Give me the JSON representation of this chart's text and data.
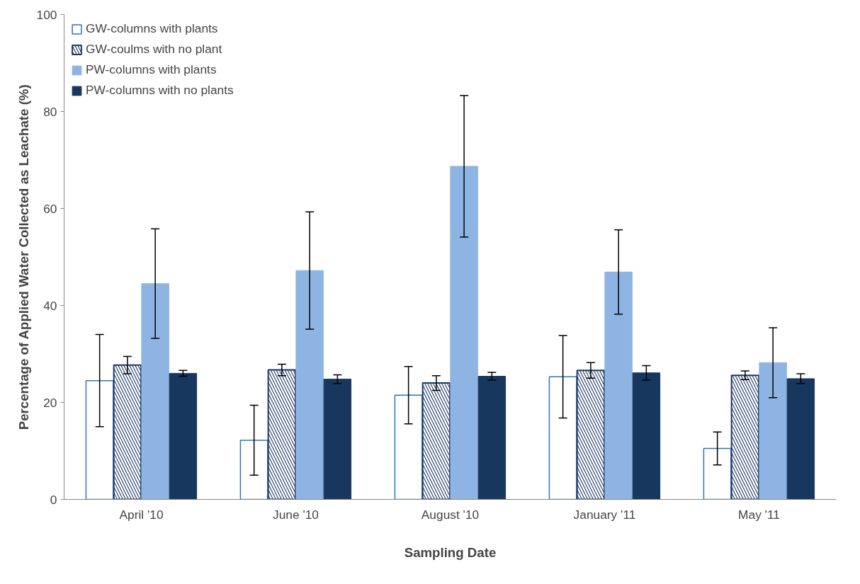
{
  "chart_data": {
    "type": "bar",
    "xlabel": "Sampling Date",
    "ylabel": "Percentage of Applied Water Collected as Leachate (%)",
    "categories": [
      "April '10",
      "June '10",
      "August '10",
      "January '11",
      "May '11"
    ],
    "series": [
      {
        "name": "GW-columns with plants",
        "color": "#2e75b6",
        "values": [
          24.5,
          12.2,
          21.5,
          25.3,
          10.5
        ],
        "errors": [
          9.5,
          7.2,
          5.9,
          8.5,
          3.4
        ]
      },
      {
        "name": "GW-coulms with no plant",
        "color": "#1f3864",
        "values": [
          27.7,
          26.7,
          24,
          26.6,
          25.6
        ],
        "errors": [
          1.8,
          1.2,
          1.5,
          1.6,
          0.9
        ]
      },
      {
        "name": "PW-columns with plants",
        "color": "#8eb4e3",
        "values": [
          44.5,
          47.2,
          68.7,
          46.9,
          28.2
        ],
        "errors": [
          11.3,
          12.1,
          14.6,
          8.7,
          7.2
        ]
      },
      {
        "name": "PW-columns with no plants",
        "color": "#17375e",
        "values": [
          26,
          24.8,
          25.4,
          26.1,
          24.9
        ],
        "errors": [
          0.6,
          0.9,
          0.8,
          1.5,
          1
        ]
      }
    ],
    "ylim": [
      0,
      100
    ],
    "yticks": [
      0,
      20,
      40,
      60,
      80,
      100
    ],
    "grid": false,
    "legend": "top left"
  }
}
